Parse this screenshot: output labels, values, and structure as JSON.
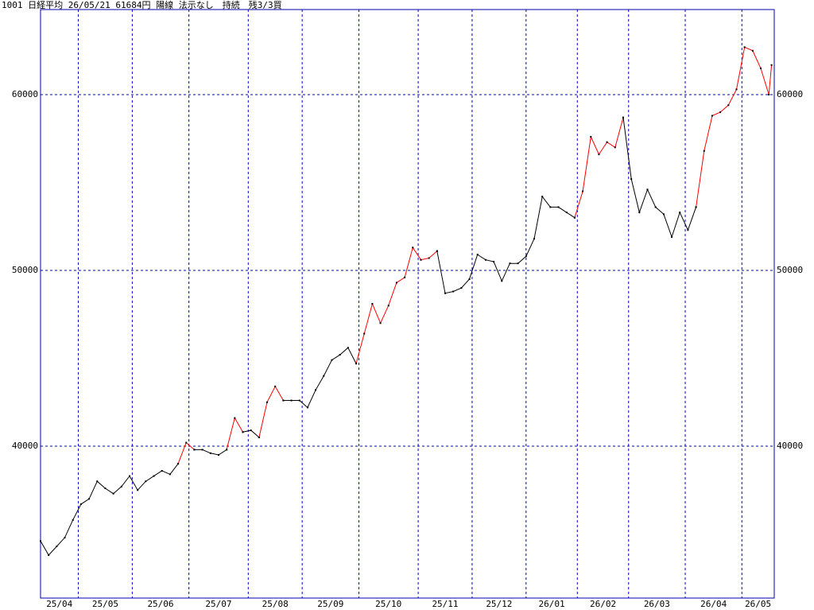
{
  "chart_data": {
    "type": "line",
    "title": "1001 日経平均 26/05/21 61684円 陽線 法示なし　持続　残3/3買",
    "x": [
      0,
      3,
      6,
      9,
      12,
      15,
      18,
      21,
      24,
      27,
      30,
      33,
      36,
      39,
      42,
      45,
      48,
      51,
      54,
      57,
      60,
      63,
      66,
      69,
      72,
      75,
      78,
      81,
      84,
      87,
      90,
      93,
      96,
      99,
      102,
      105,
      108,
      111,
      114,
      117,
      120,
      123,
      126,
      129,
      132,
      135,
      138,
      141,
      144,
      147,
      150,
      153,
      156,
      159,
      162,
      165,
      168,
      171,
      174,
      177,
      180,
      183,
      186,
      189,
      192,
      195,
      198,
      201,
      204,
      207,
      210,
      213,
      216,
      219,
      222,
      225,
      228,
      231,
      234,
      237,
      240,
      243,
      246,
      249,
      252,
      255,
      258,
      261,
      264,
      267,
      270,
      271
    ],
    "series": [
      {
        "color": "#ff0000",
        "values": [
          null,
          null,
          null,
          null,
          null,
          null,
          null,
          null,
          null,
          null,
          null,
          null,
          null,
          null,
          null,
          null,
          null,
          39000,
          40200,
          39800,
          null,
          null,
          null,
          39800,
          41600,
          40800,
          null,
          40500,
          42500,
          43400,
          42600,
          null,
          null,
          null,
          null,
          null,
          null,
          null,
          null,
          44700,
          46400,
          48100,
          47000,
          48000,
          49300,
          49600,
          51300,
          50600,
          50700,
          51100,
          null,
          null,
          null,
          null,
          null,
          null,
          null,
          null,
          null,
          null,
          null,
          null,
          null,
          null,
          null,
          null,
          53000,
          54500,
          57600,
          56600,
          57300,
          57000,
          58700,
          null,
          null,
          null,
          null,
          null,
          null,
          null,
          null,
          53600,
          56800,
          58800,
          59000,
          59400,
          60300,
          62700,
          62500,
          61500,
          60000,
          61684
        ]
      },
      {
        "color": "#000000",
        "values": [
          34600,
          33800,
          34300,
          34800,
          35800,
          36700,
          37000,
          38000,
          37600,
          37300,
          37700,
          38300,
          37500,
          38000,
          38300,
          38600,
          38400,
          39000,
          null,
          39800,
          39800,
          39600,
          39500,
          39800,
          null,
          40800,
          40900,
          40500,
          null,
          null,
          42600,
          42600,
          42600,
          42200,
          43200,
          44000,
          44900,
          45200,
          45600,
          44700,
          null,
          null,
          null,
          null,
          null,
          null,
          null,
          null,
          null,
          51100,
          48700,
          48800,
          49000,
          49500,
          50900,
          50600,
          50500,
          49400,
          50400,
          50400,
          50800,
          51800,
          54200,
          53600,
          53600,
          53300,
          53000,
          null,
          null,
          null,
          null,
          null,
          58700,
          55200,
          53300,
          54600,
          53600,
          53200,
          51900,
          53300,
          52300,
          53600,
          null,
          null,
          null,
          null,
          null,
          null,
          null,
          null,
          null,
          null
        ]
      }
    ],
    "xlim": [
      0,
      272
    ],
    "xticks": [
      {
        "value": 0,
        "label": "25/04"
      },
      {
        "value": 14,
        "label": "25/05"
      },
      {
        "value": 34,
        "label": "25/06"
      },
      {
        "value": 55,
        "label": "25/07"
      },
      {
        "value": 77,
        "label": "25/08"
      },
      {
        "value": 97,
        "label": "25/09"
      },
      {
        "value": 118,
        "label": "25/10"
      },
      {
        "value": 140,
        "label": "25/11"
      },
      {
        "value": 160,
        "label": "25/12"
      },
      {
        "value": 180,
        "label": "26/01"
      },
      {
        "value": 199,
        "label": "26/02"
      },
      {
        "value": 218,
        "label": "26/03"
      },
      {
        "value": 239,
        "label": "26/04"
      },
      {
        "value": 260,
        "label": "26/05"
      }
    ],
    "ylim": [
      31357,
      64842
    ],
    "yticks": [
      40000,
      50000,
      60000
    ],
    "grid": true,
    "grid_color": "#0000cc",
    "frame_color": "#0000aa"
  }
}
